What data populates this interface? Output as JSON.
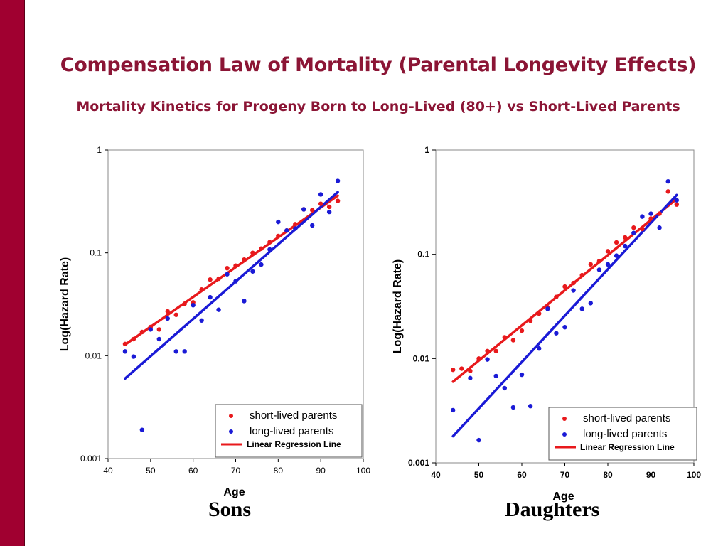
{
  "slide": {
    "title": "Compensation Law of Mortality (Parental Longevity Effects)",
    "subtitle_prefix": "Mortality Kinetics for Progeny Born to ",
    "subtitle_long": "Long-Lived",
    "subtitle_middle": " (80+) vs ",
    "subtitle_short": "Short-Lived",
    "subtitle_suffix": " Parents",
    "sons_caption": "Sons",
    "daughters_caption": "Daughters"
  },
  "colors": {
    "sidebar": "#a00030",
    "title": "#8b1535",
    "short_lived": "#e8191c",
    "long_lived": "#1a1ad6"
  },
  "chart_data": [
    {
      "type": "scatter",
      "panel": "Sons",
      "xlabel": "Age",
      "ylabel": "Log(Hazard Rate)",
      "xlim": [
        40,
        100
      ],
      "ylim": [
        0.001,
        1
      ],
      "yscale": "log",
      "x_ticks": [
        "40",
        "50",
        "60",
        "70",
        "80",
        "90",
        "100"
      ],
      "y_ticks": [
        "0.001",
        "0.01",
        "0.1",
        "1"
      ],
      "legend_position": "bottom-right",
      "legend_line_label": "Linear Regression Line",
      "series": [
        {
          "name": "short-lived parents",
          "color": "#e8191c",
          "x": [
            44,
            46,
            48,
            50,
            52,
            54,
            56,
            58,
            60,
            62,
            64,
            66,
            68,
            70,
            72,
            74,
            76,
            78,
            80,
            82,
            84,
            86,
            88,
            90,
            92,
            94
          ],
          "y": [
            0.013,
            0.0145,
            0.017,
            0.019,
            0.018,
            0.027,
            0.025,
            0.032,
            0.033,
            0.044,
            0.055,
            0.056,
            0.071,
            0.075,
            0.086,
            0.1,
            0.11,
            0.127,
            0.146,
            0.165,
            0.19,
            0.265,
            0.26,
            0.3,
            0.28,
            0.32
          ],
          "regression": {
            "x": [
              44,
              94
            ],
            "y": [
              0.0128,
              0.36
            ]
          }
        },
        {
          "name": "long-lived parents",
          "color": "#1a1ad6",
          "x": [
            44,
            46,
            48,
            50,
            52,
            54,
            56,
            58,
            60,
            62,
            64,
            66,
            68,
            70,
            72,
            74,
            76,
            78,
            80,
            82,
            84,
            86,
            88,
            90,
            92,
            94
          ],
          "y": [
            0.011,
            0.0098,
            0.0019,
            0.018,
            0.0145,
            0.023,
            0.011,
            0.011,
            0.031,
            0.022,
            0.037,
            0.028,
            0.062,
            0.053,
            0.034,
            0.066,
            0.077,
            0.108,
            0.2,
            0.165,
            0.172,
            0.265,
            0.185,
            0.37,
            0.25,
            0.5
          ],
          "regression": {
            "x": [
              44,
              94
            ],
            "y": [
              0.006,
              0.39
            ]
          }
        }
      ]
    },
    {
      "type": "scatter",
      "panel": "Daughters",
      "xlabel": "Age",
      "ylabel": "Log(Hazard Rate)",
      "xlim": [
        40,
        100
      ],
      "ylim": [
        0.001,
        1
      ],
      "yscale": "log",
      "x_ticks": [
        "40",
        "50",
        "60",
        "70",
        "80",
        "90",
        "100"
      ],
      "y_ticks": [
        "0.001",
        "0.01",
        "0.1",
        "1"
      ],
      "legend_position": "bottom-right",
      "legend_line_label": "Linear Regression Line",
      "series": [
        {
          "name": "short-lived parents",
          "color": "#e8191c",
          "x": [
            44,
            46,
            48,
            50,
            52,
            54,
            56,
            58,
            60,
            62,
            64,
            66,
            68,
            70,
            72,
            74,
            76,
            78,
            80,
            82,
            84,
            86,
            88,
            90,
            92,
            94,
            96
          ],
          "y": [
            0.0078,
            0.008,
            0.0076,
            0.01,
            0.0118,
            0.0118,
            0.016,
            0.015,
            0.0185,
            0.023,
            0.027,
            0.031,
            0.039,
            0.049,
            0.053,
            0.063,
            0.08,
            0.086,
            0.107,
            0.13,
            0.145,
            0.18,
            0.175,
            0.22,
            0.245,
            0.4,
            0.3
          ],
          "regression": {
            "x": [
              44,
              96
            ],
            "y": [
              0.006,
              0.34
            ]
          }
        },
        {
          "name": "long-lived parents",
          "color": "#1a1ad6",
          "x": [
            44,
            48,
            50,
            52,
            54,
            56,
            58,
            60,
            62,
            64,
            66,
            68,
            70,
            72,
            74,
            76,
            78,
            80,
            82,
            84,
            86,
            88,
            90,
            92,
            94,
            96
          ],
          "y": [
            0.0032,
            0.0065,
            0.00165,
            0.0098,
            0.0068,
            0.0052,
            0.0034,
            0.007,
            0.0035,
            0.0125,
            0.03,
            0.0175,
            0.02,
            0.045,
            0.03,
            0.034,
            0.071,
            0.08,
            0.097,
            0.12,
            0.16,
            0.23,
            0.245,
            0.18,
            0.5,
            0.33
          ],
          "regression": {
            "x": [
              44,
              96
            ],
            "y": [
              0.0018,
              0.37
            ]
          }
        }
      ]
    }
  ]
}
